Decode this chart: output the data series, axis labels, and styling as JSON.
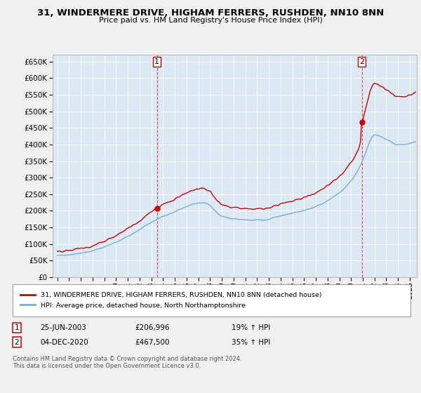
{
  "title": "31, WINDERMERE DRIVE, HIGHAM FERRERS, RUSHDEN, NN10 8NN",
  "subtitle": "Price paid vs. HM Land Registry's House Price Index (HPI)",
  "sale1_date": "25-JUN-2003",
  "sale1_price": 206996,
  "sale1_hpi": "19% ↑ HPI",
  "sale2_date": "04-DEC-2020",
  "sale2_price": 467500,
  "sale2_hpi": "35% ↑ HPI",
  "legend_label1": "31, WINDERMERE DRIVE, HIGHAM FERRERS, RUSHDEN, NN10 8NN (detached house)",
  "legend_label2": "HPI: Average price, detached house, North Northamptonshire",
  "footer": "Contains HM Land Registry data © Crown copyright and database right 2024.\nThis data is licensed under the Open Government Licence v3.0.",
  "line_color_sale": "#cc0000",
  "line_color_hpi": "#7aadd4",
  "background_color": "#f0f0f0",
  "plot_bg_color": "#dce9f5",
  "ylim": [
    0,
    670000
  ],
  "yticks": [
    0,
    50000,
    100000,
    150000,
    200000,
    250000,
    300000,
    350000,
    400000,
    450000,
    500000,
    550000,
    600000,
    650000
  ],
  "sale1_year": 2003.48,
  "sale2_year": 2020.92
}
